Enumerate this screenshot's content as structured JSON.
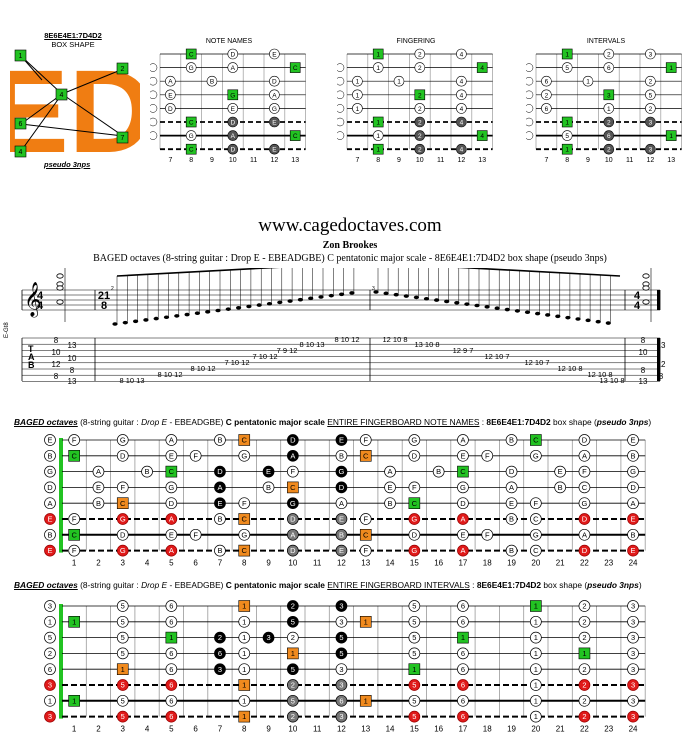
{
  "shape": {
    "code": "8E6E4E1:7D4D2",
    "label": "BOX SHAPE",
    "letters": "ED",
    "pseudo": "pseudo 3nps",
    "markers": [
      "1",
      "2",
      "4",
      "6",
      "7",
      "4"
    ]
  },
  "mini_diagrams": [
    {
      "title": "NOTE NAMES"
    },
    {
      "title": "FINGERING"
    },
    {
      "title": "INTERVALS"
    }
  ],
  "mini_frets": [
    "7",
    "8",
    "9",
    "10",
    "11",
    "12",
    "13"
  ],
  "site": "www.cagedoctaves.com",
  "author": "Zon Brookes",
  "subtitle": "BAGED octaves (8-string guitar : Drop E - EBEADGBE) C pentatonic major scale - 8E6E4E1:7D4D2 box shape (pseudo 3nps)",
  "score": {
    "instrument": "E-Gt8",
    "time_start": "4/4",
    "time_mid": "21/8",
    "time_end": "4/4",
    "tab_label": [
      "T",
      "A",
      "B"
    ],
    "tab_chord_start": [
      "8",
      "13",
      "10",
      "10",
      "12",
      "8",
      "8",
      "13"
    ],
    "tab_chord_end": [
      "8",
      "13",
      "10",
      "12",
      "8",
      "8",
      "13"
    ],
    "tab_run": [
      "8 10 13",
      "8 10 12",
      "8 10 12",
      "7 10 12",
      "7 10 12",
      "7 9 12",
      "8 10 13",
      "8 10 12",
      "12 10 8",
      "13 10 8",
      "12 9 7",
      "12 10 7",
      "12 10 7",
      "12 10 8",
      "12 10 8",
      "13 10 8"
    ],
    "measure_num": [
      "2",
      "3"
    ]
  },
  "fretboards": [
    {
      "title_parts": [
        "BAGED octaves",
        " (8-string guitar : ",
        "Drop E",
        " - EBEADGBE) ",
        "C pentatonic major scale",
        " ",
        "ENTIRE FINGERBOARD NOTE NAMES",
        " : ",
        "8E6E4E1:7D4D2",
        " box shape (",
        "pseudo 3nps",
        ")"
      ]
    },
    {
      "title_parts": [
        "BAGED octaves",
        " (8-string guitar : ",
        "Drop E",
        " - EBEADGBE) ",
        "C pentatonic major scale",
        " ",
        "ENTIRE FINGERBOARD INTERVALS",
        " : ",
        "8E6E4E1:7D4D2",
        " box shape (",
        "pseudo 3nps",
        ")"
      ]
    }
  ],
  "fret_numbers": [
    "1",
    "2",
    "3",
    "4",
    "5",
    "6",
    "7",
    "8",
    "9",
    "10",
    "11",
    "12",
    "13",
    "14",
    "15",
    "16",
    "17",
    "18",
    "19",
    "20",
    "21",
    "22",
    "23",
    "24"
  ],
  "strings": [
    "E",
    "B",
    "G",
    "D",
    "A",
    "E",
    "B",
    "E"
  ],
  "note_names": {
    "E": [
      "F",
      "",
      "G",
      "",
      "A",
      "",
      "B",
      "C",
      "",
      "D",
      "",
      "E",
      "F",
      "",
      "G",
      "",
      "A",
      "",
      "B",
      "C",
      "",
      "D",
      "",
      "E"
    ],
    "B": [
      "C",
      "",
      "D",
      "",
      "E",
      "F",
      "",
      "G",
      "",
      "A",
      "",
      "B",
      "C",
      "",
      "D",
      "",
      "E",
      "F",
      "",
      "G",
      "",
      "A",
      "",
      "B"
    ],
    "G": [
      "",
      "A",
      "",
      "B",
      "C",
      "",
      "D",
      "",
      "E",
      "F",
      "",
      "G",
      "",
      "A",
      "",
      "B",
      "C",
      "",
      "D",
      "",
      "E",
      "F",
      "",
      "G"
    ],
    "D": [
      "",
      "E",
      "F",
      "",
      "G",
      "",
      "A",
      "",
      "B",
      "C",
      "",
      "D",
      "",
      "E",
      "F",
      "",
      "G",
      "",
      "A",
      "",
      "B",
      "C",
      "",
      "D"
    ],
    "A": [
      "",
      "B",
      "C",
      "",
      "D",
      "",
      "E",
      "F",
      "",
      "G",
      "",
      "A",
      "",
      "B",
      "C",
      "",
      "D",
      "",
      "E",
      "F",
      "",
      "G",
      "",
      "A"
    ]
  },
  "intervals_row": [
    "",
    "",
    "5",
    "",
    "6",
    "",
    "",
    "1",
    "",
    "2",
    "",
    "3",
    "",
    "",
    "5",
    "",
    "6",
    "",
    "",
    "1",
    "",
    "2",
    "",
    "3"
  ],
  "colors": {
    "root_green": "#22c322",
    "orange": "#f08a1e",
    "red": "#e01a1a",
    "black": "#000000",
    "grey": "#666666",
    "shape_orange": "#f07d12"
  }
}
